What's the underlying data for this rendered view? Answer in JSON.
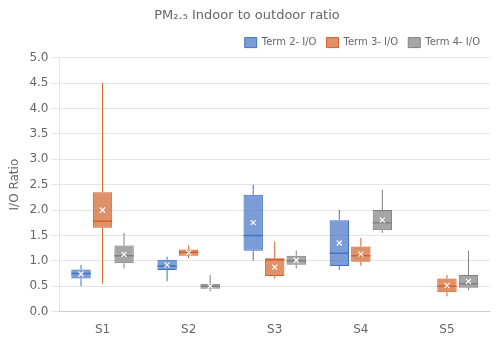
{
  "chart_data": {
    "type": "box",
    "title": "PM₂.₅ Indoor to outdoor ratio",
    "ylabel": "I/O Ratio",
    "categories": [
      "S1",
      "S2",
      "S3",
      "S4",
      "S5"
    ],
    "series": [
      {
        "name": "Term 2- I/O",
        "color": "#4472C4",
        "whislo": [
          0.5,
          0.6,
          1.0,
          0.82,
          null
        ],
        "q1": [
          0.65,
          0.82,
          1.2,
          0.9,
          null
        ],
        "med": [
          0.75,
          0.9,
          1.5,
          1.15,
          null
        ],
        "q3": [
          0.83,
          1.02,
          2.3,
          1.8,
          null
        ],
        "whishi": [
          0.92,
          1.08,
          2.5,
          2.0,
          null
        ],
        "means": [
          0.74,
          0.92,
          1.75,
          1.35,
          null
        ]
      },
      {
        "name": "Term 3- I/O",
        "color": "#D4622A",
        "whislo": [
          0.55,
          1.05,
          0.65,
          0.9,
          0.3
        ],
        "q1": [
          1.65,
          1.1,
          0.7,
          0.98,
          0.38
        ],
        "med": [
          1.78,
          1.17,
          1.02,
          1.1,
          0.5
        ],
        "q3": [
          2.35,
          1.22,
          1.05,
          1.28,
          0.65
        ],
        "whishi": [
          4.5,
          1.3,
          1.38,
          1.45,
          0.72
        ],
        "means": [
          2.0,
          1.16,
          0.875,
          1.13,
          0.515
        ]
      },
      {
        "name": "Term 4- I/O",
        "color": "#808080",
        "whislo": [
          0.85,
          0.4,
          0.85,
          1.55,
          0.42
        ],
        "q1": [
          0.95,
          0.45,
          0.92,
          1.6,
          0.47
        ],
        "med": [
          1.1,
          0.5,
          1.0,
          1.75,
          0.55
        ],
        "q3": [
          1.3,
          0.55,
          1.1,
          2.0,
          0.72
        ],
        "whishi": [
          1.55,
          0.72,
          1.2,
          2.4,
          1.2
        ],
        "means": [
          1.125,
          0.5,
          1.01,
          1.8,
          0.595
        ]
      }
    ],
    "ylim": [
      0,
      5
    ],
    "yticks": [
      {
        "value": 0,
        "label": "0.0"
      },
      0.5,
      {
        "value": 1,
        "label": "1.0"
      },
      1.5,
      {
        "value": 2,
        "label": "2.0"
      },
      2.5,
      {
        "value": 3,
        "label": "3.0"
      },
      3.5,
      {
        "value": 4,
        "label": "4.0"
      },
      4.5,
      {
        "value": 5,
        "label": "5.0"
      }
    ],
    "grid": true,
    "legend": "upper right"
  }
}
